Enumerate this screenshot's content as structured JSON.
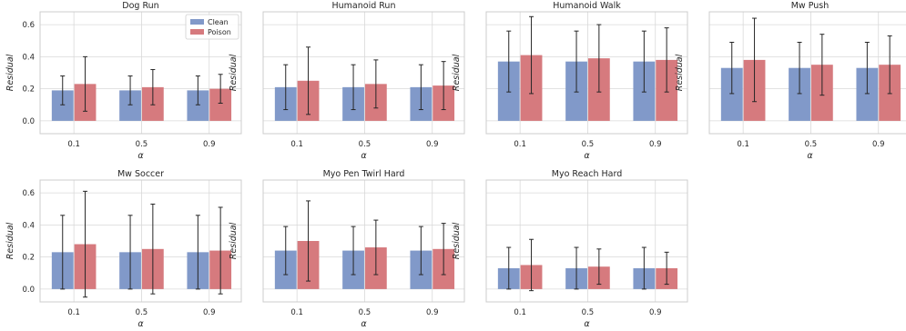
{
  "colors": {
    "clean": "#8199c9",
    "poison": "#d67a7e",
    "grid": "#d9d9d9",
    "frame": "#cccccc",
    "error_bar": "#262626"
  },
  "chart_data": {
    "type": "bar",
    "layout": "2x4 grid of subplots, shared y-axis",
    "legend": {
      "placement": "top-right of first panel",
      "entries": [
        "Clean",
        "Poison"
      ]
    },
    "xlabel": "α",
    "ylabel": "Residual",
    "ylim": [
      -0.08,
      0.68
    ],
    "yticks": [
      0.0,
      0.2,
      0.4,
      0.6
    ],
    "ytick_labels": [
      "0.0",
      "0.2",
      "0.4",
      "0.6"
    ],
    "categories": [
      "0.1",
      "0.5",
      "0.9"
    ],
    "grid": true,
    "panels": [
      {
        "title": "Dog Run",
        "series": [
          {
            "name": "Clean",
            "values": [
              0.19,
              0.19,
              0.19
            ],
            "err": [
              0.09,
              0.09,
              0.09
            ]
          },
          {
            "name": "Poison",
            "values": [
              0.23,
              0.21,
              0.2
            ],
            "err": [
              0.17,
              0.11,
              0.09
            ]
          }
        ]
      },
      {
        "title": "Humanoid Run",
        "series": [
          {
            "name": "Clean",
            "values": [
              0.21,
              0.21,
              0.21
            ],
            "err": [
              0.14,
              0.14,
              0.14
            ]
          },
          {
            "name": "Poison",
            "values": [
              0.25,
              0.23,
              0.22
            ],
            "err": [
              0.21,
              0.15,
              0.15
            ]
          }
        ]
      },
      {
        "title": "Humanoid Walk",
        "series": [
          {
            "name": "Clean",
            "values": [
              0.37,
              0.37,
              0.37
            ],
            "err": [
              0.19,
              0.19,
              0.19
            ]
          },
          {
            "name": "Poison",
            "values": [
              0.41,
              0.39,
              0.38
            ],
            "err": [
              0.24,
              0.21,
              0.2
            ]
          }
        ]
      },
      {
        "title": "Mw Push",
        "series": [
          {
            "name": "Clean",
            "values": [
              0.33,
              0.33,
              0.33
            ],
            "err": [
              0.16,
              0.16,
              0.16
            ]
          },
          {
            "name": "Poison",
            "values": [
              0.38,
              0.35,
              0.35
            ],
            "err": [
              0.26,
              0.19,
              0.18
            ]
          }
        ]
      },
      {
        "title": "Mw Soccer",
        "series": [
          {
            "name": "Clean",
            "values": [
              0.23,
              0.23,
              0.23
            ],
            "err": [
              0.23,
              0.23,
              0.23
            ]
          },
          {
            "name": "Poison",
            "values": [
              0.28,
              0.25,
              0.24
            ],
            "err": [
              0.33,
              0.28,
              0.27
            ]
          }
        ]
      },
      {
        "title": "Myo Pen Twirl Hard",
        "series": [
          {
            "name": "Clean",
            "values": [
              0.24,
              0.24,
              0.24
            ],
            "err": [
              0.15,
              0.15,
              0.15
            ]
          },
          {
            "name": "Poison",
            "values": [
              0.3,
              0.26,
              0.25
            ],
            "err": [
              0.25,
              0.17,
              0.16
            ]
          }
        ]
      },
      {
        "title": "Myo Reach Hard",
        "series": [
          {
            "name": "Clean",
            "values": [
              0.13,
              0.13,
              0.13
            ],
            "err": [
              0.13,
              0.13,
              0.13
            ]
          },
          {
            "name": "Poison",
            "values": [
              0.15,
              0.14,
              0.13
            ],
            "err": [
              0.16,
              0.11,
              0.1
            ]
          }
        ]
      }
    ]
  }
}
